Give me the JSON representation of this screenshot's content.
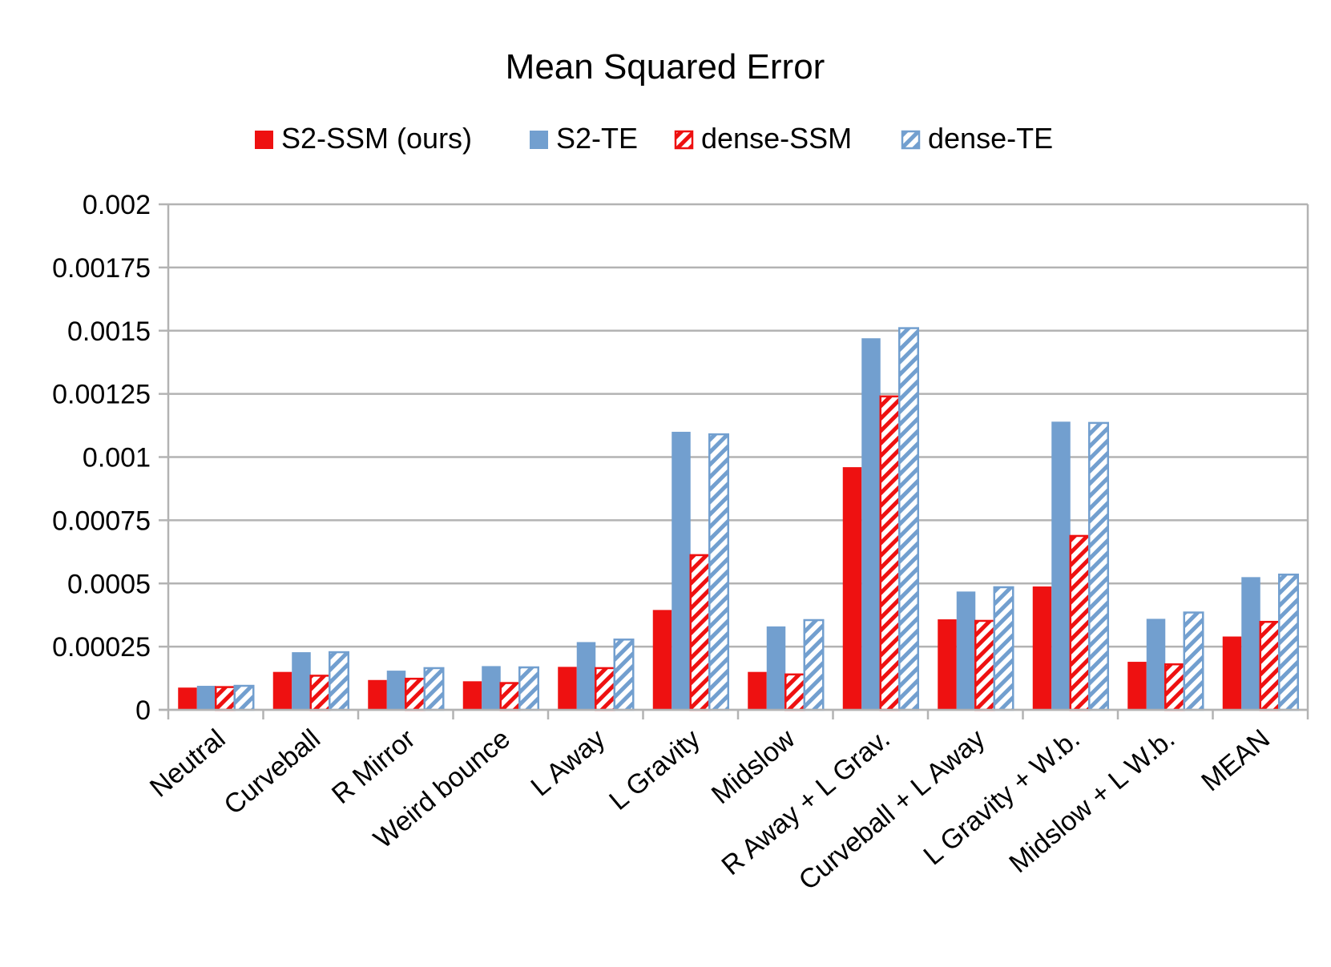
{
  "chart_data": {
    "type": "bar",
    "title": "Mean Squared Error",
    "xlabel": "",
    "ylabel": "",
    "ylim": [
      0,
      0.002
    ],
    "yticks": [
      "0",
      "0.00025",
      "0.0005",
      "0.00075",
      "0.001",
      "0.00125",
      "0.0015",
      "0.00175",
      "0.002"
    ],
    "grid": true,
    "legend_position": "top",
    "categories": [
      "Neutral",
      "Curveball",
      "R Mirror",
      "Weird bounce",
      "L Away",
      "L Gravity",
      "Midslow",
      "R Away + L Grav.",
      "Curveball + L Away",
      "L Gravity + W.b.",
      "Midslow + L W.b.",
      "MEAN"
    ],
    "series": [
      {
        "name": "S2-SSM (ours)",
        "color": "#ee1111",
        "pattern": "solid",
        "values": [
          8.8e-05,
          0.00015,
          0.000118,
          0.000113,
          0.00017,
          0.000395,
          0.00015,
          0.00096,
          0.000358,
          0.000488,
          0.00019,
          0.00029
        ]
      },
      {
        "name": "S2-TE",
        "color": "#729fcf",
        "pattern": "solid",
        "values": [
          9.5e-05,
          0.000228,
          0.000155,
          0.000173,
          0.000268,
          0.0011,
          0.00033,
          0.00147,
          0.000468,
          0.00114,
          0.00036,
          0.000525
        ]
      },
      {
        "name": "dense-SSM",
        "color": "#ee1111",
        "pattern": "hatched",
        "values": [
          9e-05,
          0.000135,
          0.000123,
          0.000106,
          0.000165,
          0.000612,
          0.00014,
          0.00124,
          0.000352,
          0.000688,
          0.00018,
          0.000348
        ]
      },
      {
        "name": "dense-TE",
        "color": "#729fcf",
        "pattern": "hatched",
        "values": [
          9.5e-05,
          0.000228,
          0.000165,
          0.000168,
          0.000278,
          0.00109,
          0.000355,
          0.00151,
          0.000485,
          0.001135,
          0.000385,
          0.000535
        ]
      }
    ]
  }
}
